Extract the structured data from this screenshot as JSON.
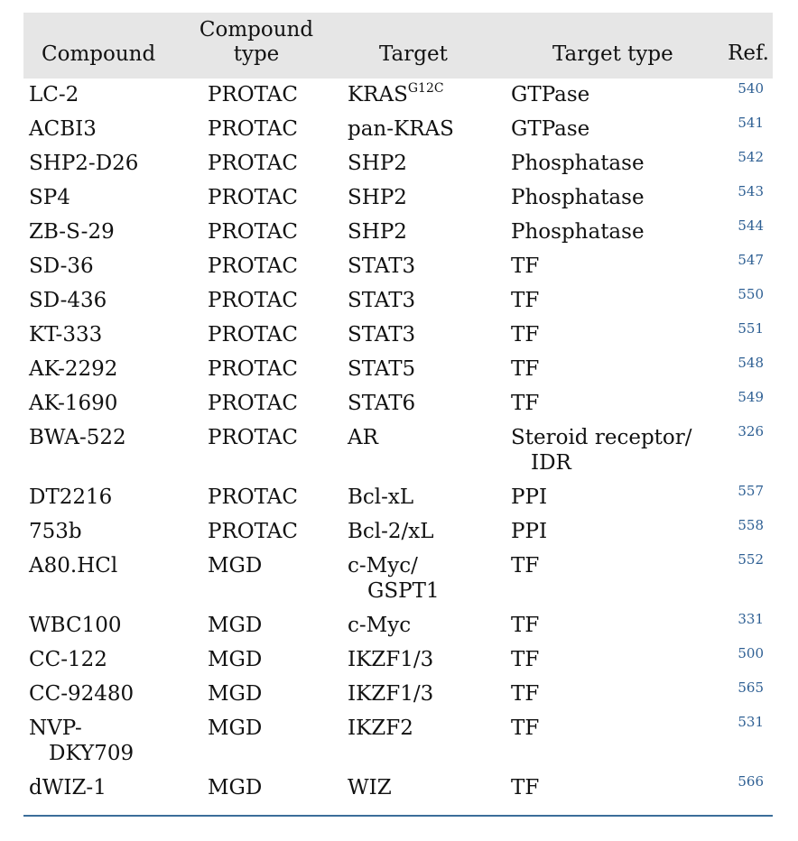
{
  "headers": {
    "compound": "Compound",
    "compound_type_line1": "Compound",
    "compound_type_line2": "type",
    "target": "Target",
    "target_type": "Target type",
    "ref": "Ref."
  },
  "rows": [
    {
      "compound": "LC-2",
      "type": "PROTAC",
      "target": "KRAS",
      "target_sup": "G12C",
      "target_type": "GTPase",
      "ref": "540"
    },
    {
      "compound": "ACBI3",
      "type": "PROTAC",
      "target": "pan-KRAS",
      "target_type": "GTPase",
      "ref": "541"
    },
    {
      "compound": "SHP2-D26",
      "type": "PROTAC",
      "target": "SHP2",
      "target_type": "Phosphatase",
      "ref": "542"
    },
    {
      "compound": "SP4",
      "type": "PROTAC",
      "target": "SHP2",
      "target_type": "Phosphatase",
      "ref": "543"
    },
    {
      "compound": "ZB-S-29",
      "type": "PROTAC",
      "target": "SHP2",
      "target_type": "Phosphatase",
      "ref": "544"
    },
    {
      "compound": "SD-36",
      "type": "PROTAC",
      "target": "STAT3",
      "target_type": "TF",
      "ref": "547"
    },
    {
      "compound": "SD-436",
      "type": "PROTAC",
      "target": "STAT3",
      "target_type": "TF",
      "ref": "550"
    },
    {
      "compound": "KT-333",
      "type": "PROTAC",
      "target": "STAT3",
      "target_type": "TF",
      "ref": "551"
    },
    {
      "compound": "AK-2292",
      "type": "PROTAC",
      "target": "STAT5",
      "target_type": "TF",
      "ref": "548"
    },
    {
      "compound": "AK-1690",
      "type": "PROTAC",
      "target": "STAT6",
      "target_type": "TF",
      "ref": "549"
    },
    {
      "compound": "BWA-522",
      "type": "PROTAC",
      "target": "AR",
      "target_type": "Steroid receptor/",
      "target_type_2": "IDR",
      "ref": "326"
    },
    {
      "compound": "DT2216",
      "type": "PROTAC",
      "target": "Bcl-xL",
      "target_type": "PPI",
      "ref": "557"
    },
    {
      "compound": "753b",
      "type": "PROTAC",
      "target": "Bcl-2/xL",
      "target_type": "PPI",
      "ref": "558"
    },
    {
      "compound": "A80.HCl",
      "type": "MGD",
      "target": "c-Myc/",
      "target_2": "GSPT1",
      "target_type": "TF",
      "ref": "552"
    },
    {
      "compound": "WBC100",
      "type": "MGD",
      "target": "c-Myc",
      "target_type": "TF",
      "ref": "331"
    },
    {
      "compound": "CC-122",
      "type": "MGD",
      "target": "IKZF1/3",
      "target_type": "TF",
      "ref": "500"
    },
    {
      "compound": "CC-92480",
      "type": "MGD",
      "target": "IKZF1/3",
      "target_type": "TF",
      "ref": "565"
    },
    {
      "compound": "NVP-",
      "compound_2": "DKY709",
      "type": "MGD",
      "target": "IKZF2",
      "target_type": "TF",
      "ref": "531"
    },
    {
      "compound": "dWIZ-1",
      "type": "MGD",
      "target": "WIZ",
      "target_type": "TF",
      "ref": "566"
    }
  ],
  "colors": {
    "header_bg": "#e6e6e6",
    "ref_link": "#2e5f93",
    "bottom_rule": "#3b6e9a"
  }
}
